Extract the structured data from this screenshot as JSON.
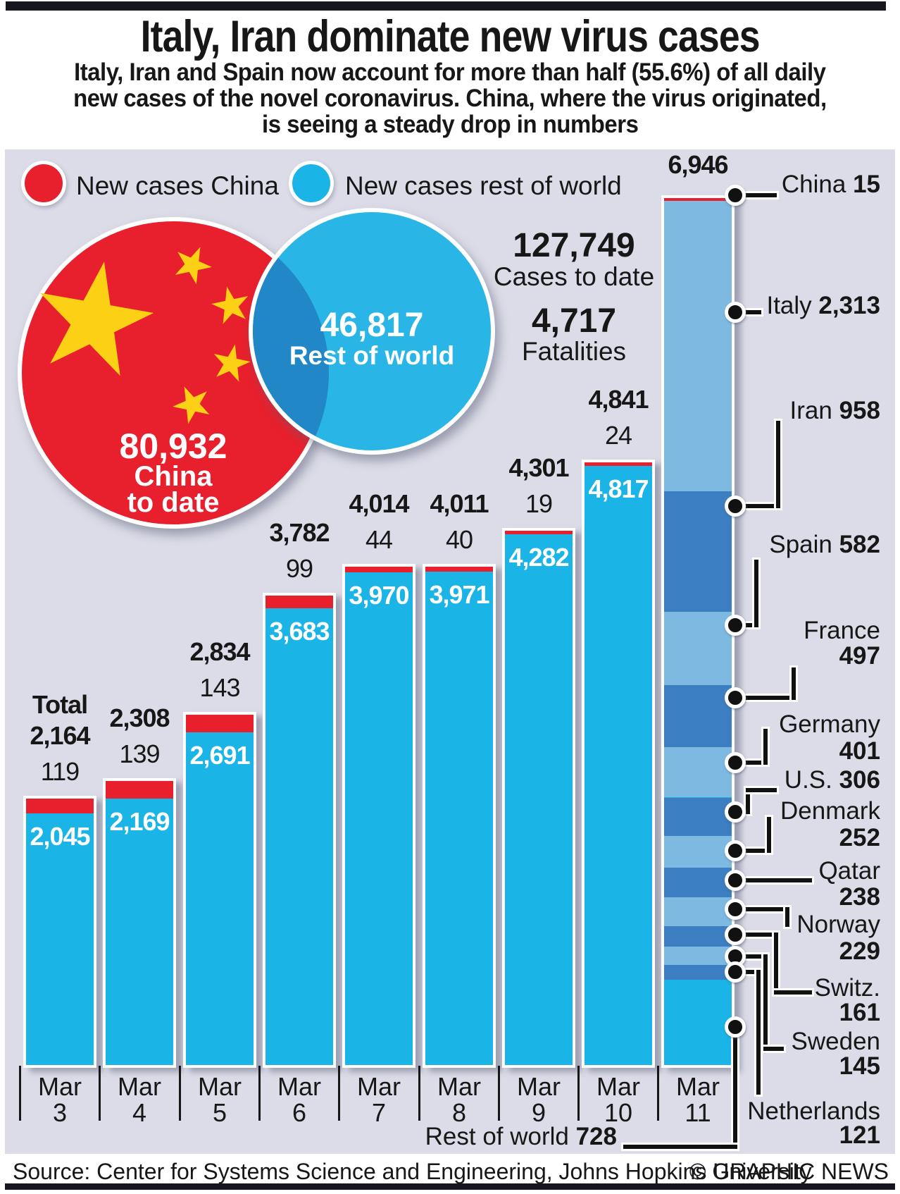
{
  "header": {
    "title": "Italy, Iran dominate new virus cases",
    "subtitle_lines": [
      "Italy, Iran and Spain now account for more than half (55.6%) of all daily",
      "new cases of the novel coronavirus. China, where the virus originated,",
      "is seeing a steady drop in numbers"
    ]
  },
  "legend": [
    {
      "id": "china",
      "label": "New cases China"
    },
    {
      "id": "world",
      "label": "New cases rest of world"
    }
  ],
  "venn": {
    "china": {
      "value": "80,932",
      "line1": "China",
      "line2": "to date"
    },
    "world": {
      "value": "46,817",
      "label": "Rest of world"
    }
  },
  "stats": {
    "cases": {
      "value": "127,749",
      "label": "Cases to date"
    },
    "fatalities": {
      "value": "4,717",
      "label": "Fatalities"
    }
  },
  "chart_data": {
    "type": "bar",
    "stacked": true,
    "categories": [
      "Mar 3",
      "Mar 4",
      "Mar 5",
      "Mar 6",
      "Mar 7",
      "Mar 8",
      "Mar 9",
      "Mar 10",
      "Mar 11"
    ],
    "series": [
      {
        "name": "New cases China",
        "color": "#e8202d",
        "values": [
          119,
          139,
          143,
          99,
          44,
          40,
          19,
          24,
          15
        ]
      },
      {
        "name": "New cases rest of world",
        "color": "#1ab4e6",
        "values": [
          2045,
          2169,
          2691,
          3683,
          3970,
          3971,
          4282,
          4817,
          6931
        ]
      }
    ],
    "totals": [
      2164,
      2308,
      2834,
      3782,
      4014,
      4011,
      4301,
      4841,
      6946
    ],
    "total_label_prefix": "Total",
    "ylim": [
      0,
      6946
    ],
    "grid": false,
    "mar11_breakdown": [
      {
        "id": "china",
        "name": "China",
        "value": 15
      },
      {
        "id": "italy",
        "name": "Italy",
        "value": 2313
      },
      {
        "id": "iran",
        "name": "Iran",
        "value": 958
      },
      {
        "id": "spain",
        "name": "Spain",
        "value": 582
      },
      {
        "id": "france",
        "name": "France",
        "value": 497
      },
      {
        "id": "germany",
        "name": "Germany",
        "value": 401
      },
      {
        "id": "us",
        "name": "U.S.",
        "value": 306
      },
      {
        "id": "denmark",
        "name": "Denmark",
        "value": 252
      },
      {
        "id": "qatar",
        "name": "Qatar",
        "value": 238
      },
      {
        "id": "norway",
        "name": "Norway",
        "value": 229
      },
      {
        "id": "switz",
        "name": "Switz.",
        "value": 161
      },
      {
        "id": "sweden",
        "name": "Sweden",
        "value": 145
      },
      {
        "id": "netherlands",
        "name": "Netherlands",
        "value": 121
      },
      {
        "id": "restofworld",
        "name": "Rest of world",
        "value": 728
      }
    ]
  },
  "colors": {
    "china_red": "#e8202d",
    "world_cyan": "#1ab4e6",
    "segment_light": "#7db9e1",
    "segment_dark": "#3b7ec1",
    "overlap_blue": "#2187c6",
    "flag_yellow": "#fcd015",
    "panel_bg": "#dbdce7",
    "rule_dark": "#16161e"
  },
  "source": {
    "text": "Source: Center for Systems Science and Engineering, Johns Hopkins University",
    "credit": "© GRAPHIC NEWS"
  }
}
